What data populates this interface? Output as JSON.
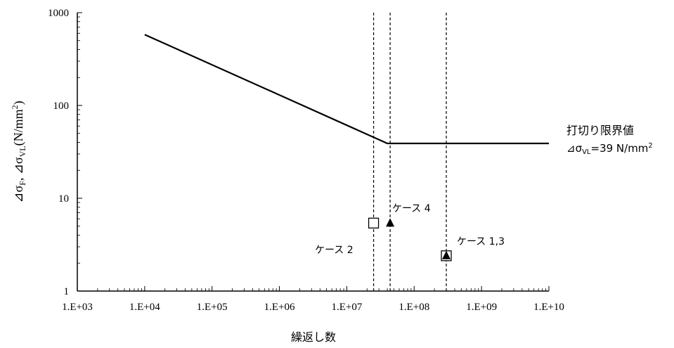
{
  "chart_data": {
    "type": "line",
    "xscale": "log",
    "yscale": "log",
    "xlim": [
      1000,
      10000000000
    ],
    "ylim": [
      1,
      1000
    ],
    "xlabel": "繰返し数",
    "ylabel_parts": {
      "delta": "⊿σ",
      "sub_f": "F",
      "sep": ", ",
      "sub_vl": "VL",
      "unit_open": "(N/mm",
      "sup": "2",
      "unit_close": ")"
    },
    "x_ticks": [
      "1.E+03",
      "1.E+04",
      "1.E+05",
      "1.E+06",
      "1.E+07",
      "1.E+08",
      "1.E+09",
      "1.E+10"
    ],
    "x_tick_values": [
      1000,
      10000,
      100000,
      1000000,
      10000000,
      100000000,
      1000000000,
      10000000000
    ],
    "y_ticks": [
      "1",
      "10",
      "100",
      "1000"
    ],
    "y_tick_values": [
      1,
      10,
      100,
      1000
    ],
    "series": [
      {
        "points": [
          [
            10000,
            580
          ],
          [
            40000000,
            39
          ],
          [
            10000000000,
            39
          ]
        ]
      }
    ],
    "vertical_lines": [
      25000000,
      44000000,
      300000000
    ],
    "markers": [
      {
        "shape": "open-square",
        "x": 25000000,
        "y": 5.4
      },
      {
        "shape": "filled-triangle",
        "x": 44000000,
        "y": 5.4
      },
      {
        "shape": "open-square",
        "x": 300000000,
        "y": 2.4
      },
      {
        "shape": "filled-triangle",
        "x": 300000000,
        "y": 2.4
      }
    ],
    "annotations": {
      "case2": "ケース 2",
      "case4": "ケース 4",
      "case13": "ケース 1,3",
      "limit_title": "打切り限界値",
      "limit_value": "⊿σ",
      "limit_sub": "VL",
      "limit_rest": "=39 N/mm",
      "limit_sup": "2"
    },
    "grid": false,
    "legend": "none"
  }
}
